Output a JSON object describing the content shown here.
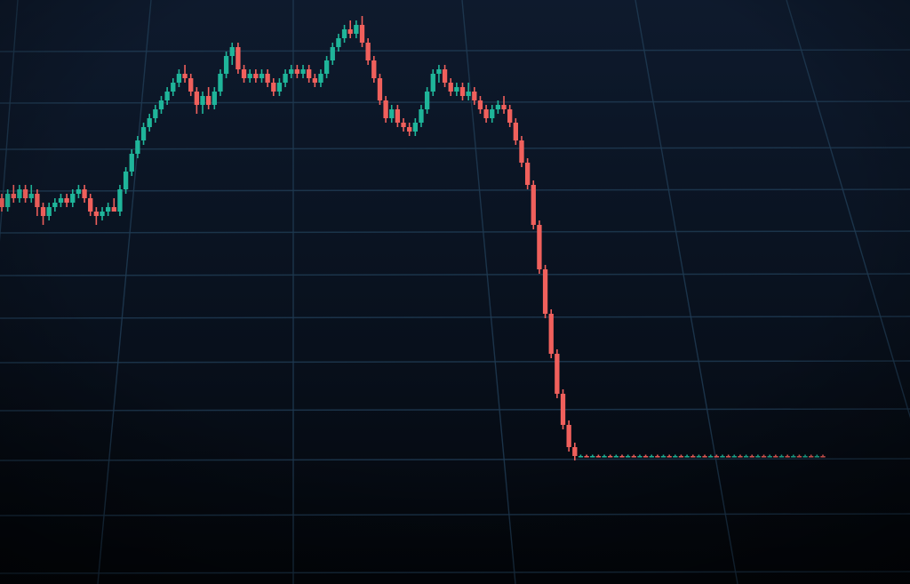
{
  "chart_data": {
    "type": "candlestick",
    "title": "",
    "xlabel": "",
    "ylabel": "",
    "grid": true,
    "legend": "none",
    "ylim": [
      0,
      100
    ],
    "colors": {
      "background": "#05080f",
      "grid": "#1f3a52",
      "up": "#1fb59a",
      "down": "#f0605c"
    },
    "series": [
      {
        "candles": [
          {
            "o": 59,
            "h": 60,
            "l": 56,
            "c": 57
          },
          {
            "o": 57,
            "h": 61,
            "l": 56,
            "c": 60
          },
          {
            "o": 60,
            "h": 62,
            "l": 58,
            "c": 59
          },
          {
            "o": 59,
            "h": 62,
            "l": 58,
            "c": 61
          },
          {
            "o": 61,
            "h": 62,
            "l": 58,
            "c": 59
          },
          {
            "o": 59,
            "h": 62,
            "l": 58,
            "c": 60
          },
          {
            "o": 60,
            "h": 61,
            "l": 55,
            "c": 57
          },
          {
            "o": 57,
            "h": 58,
            "l": 53,
            "c": 55
          },
          {
            "o": 55,
            "h": 58,
            "l": 54,
            "c": 57
          },
          {
            "o": 57,
            "h": 59,
            "l": 56,
            "c": 58
          },
          {
            "o": 58,
            "h": 60,
            "l": 57,
            "c": 59
          },
          {
            "o": 59,
            "h": 60,
            "l": 57,
            "c": 58
          },
          {
            "o": 58,
            "h": 61,
            "l": 57,
            "c": 60
          },
          {
            "o": 60,
            "h": 62,
            "l": 59,
            "c": 61
          },
          {
            "o": 61,
            "h": 62,
            "l": 58,
            "c": 59
          },
          {
            "o": 59,
            "h": 60,
            "l": 55,
            "c": 56
          },
          {
            "o": 56,
            "h": 57,
            "l": 53,
            "c": 55
          },
          {
            "o": 55,
            "h": 57,
            "l": 54,
            "c": 56
          },
          {
            "o": 56,
            "h": 58,
            "l": 55,
            "c": 57
          },
          {
            "o": 57,
            "h": 59,
            "l": 56,
            "c": 56
          },
          {
            "o": 56,
            "h": 62,
            "l": 55,
            "c": 61
          },
          {
            "o": 61,
            "h": 66,
            "l": 60,
            "c": 65
          },
          {
            "o": 65,
            "h": 70,
            "l": 64,
            "c": 69
          },
          {
            "o": 69,
            "h": 73,
            "l": 68,
            "c": 72
          },
          {
            "o": 72,
            "h": 76,
            "l": 71,
            "c": 75
          },
          {
            "o": 75,
            "h": 78,
            "l": 74,
            "c": 77
          },
          {
            "o": 77,
            "h": 80,
            "l": 76,
            "c": 79
          },
          {
            "o": 79,
            "h": 82,
            "l": 78,
            "c": 81
          },
          {
            "o": 81,
            "h": 84,
            "l": 80,
            "c": 83
          },
          {
            "o": 83,
            "h": 86,
            "l": 82,
            "c": 85
          },
          {
            "o": 85,
            "h": 88,
            "l": 84,
            "c": 87
          },
          {
            "o": 87,
            "h": 89,
            "l": 85,
            "c": 86
          },
          {
            "o": 86,
            "h": 87,
            "l": 82,
            "c": 83
          },
          {
            "o": 83,
            "h": 84,
            "l": 78,
            "c": 80
          },
          {
            "o": 80,
            "h": 83,
            "l": 78,
            "c": 82
          },
          {
            "o": 82,
            "h": 84,
            "l": 79,
            "c": 80
          },
          {
            "o": 80,
            "h": 84,
            "l": 79,
            "c": 83
          },
          {
            "o": 83,
            "h": 88,
            "l": 82,
            "c": 87
          },
          {
            "o": 87,
            "h": 92,
            "l": 86,
            "c": 91
          },
          {
            "o": 91,
            "h": 94,
            "l": 89,
            "c": 93
          },
          {
            "o": 93,
            "h": 94,
            "l": 87,
            "c": 88
          },
          {
            "o": 88,
            "h": 89,
            "l": 85,
            "c": 86
          },
          {
            "o": 86,
            "h": 88,
            "l": 85,
            "c": 87
          },
          {
            "o": 87,
            "h": 88,
            "l": 85,
            "c": 86
          },
          {
            "o": 86,
            "h": 88,
            "l": 85,
            "c": 87
          },
          {
            "o": 87,
            "h": 88,
            "l": 84,
            "c": 85
          },
          {
            "o": 85,
            "h": 86,
            "l": 82,
            "c": 83
          },
          {
            "o": 83,
            "h": 86,
            "l": 82,
            "c": 85
          },
          {
            "o": 85,
            "h": 88,
            "l": 84,
            "c": 87
          },
          {
            "o": 87,
            "h": 89,
            "l": 86,
            "c": 88
          },
          {
            "o": 88,
            "h": 89,
            "l": 86,
            "c": 87
          },
          {
            "o": 87,
            "h": 89,
            "l": 86,
            "c": 88
          },
          {
            "o": 88,
            "h": 89,
            "l": 85,
            "c": 86
          },
          {
            "o": 86,
            "h": 87,
            "l": 84,
            "c": 85
          },
          {
            "o": 85,
            "h": 88,
            "l": 84,
            "c": 87
          },
          {
            "o": 87,
            "h": 91,
            "l": 86,
            "c": 90
          },
          {
            "o": 90,
            "h": 94,
            "l": 89,
            "c": 93
          },
          {
            "o": 93,
            "h": 96,
            "l": 92,
            "c": 95
          },
          {
            "o": 95,
            "h": 98,
            "l": 94,
            "c": 97
          },
          {
            "o": 97,
            "h": 99,
            "l": 95,
            "c": 96
          },
          {
            "o": 96,
            "h": 99,
            "l": 95,
            "c": 98
          },
          {
            "o": 98,
            "h": 100,
            "l": 93,
            "c": 94
          },
          {
            "o": 94,
            "h": 95,
            "l": 89,
            "c": 90
          },
          {
            "o": 90,
            "h": 91,
            "l": 85,
            "c": 86
          },
          {
            "o": 86,
            "h": 87,
            "l": 80,
            "c": 81
          },
          {
            "o": 81,
            "h": 82,
            "l": 76,
            "c": 77
          },
          {
            "o": 77,
            "h": 80,
            "l": 76,
            "c": 79
          },
          {
            "o": 79,
            "h": 80,
            "l": 75,
            "c": 76
          },
          {
            "o": 76,
            "h": 77,
            "l": 74,
            "c": 75
          },
          {
            "o": 75,
            "h": 76,
            "l": 73,
            "c": 74
          },
          {
            "o": 74,
            "h": 77,
            "l": 73,
            "c": 76
          },
          {
            "o": 76,
            "h": 80,
            "l": 75,
            "c": 79
          },
          {
            "o": 79,
            "h": 84,
            "l": 78,
            "c": 83
          },
          {
            "o": 83,
            "h": 88,
            "l": 82,
            "c": 87
          },
          {
            "o": 87,
            "h": 89,
            "l": 85,
            "c": 88
          },
          {
            "o": 88,
            "h": 89,
            "l": 84,
            "c": 85
          },
          {
            "o": 85,
            "h": 86,
            "l": 82,
            "c": 83
          },
          {
            "o": 83,
            "h": 85,
            "l": 82,
            "c": 84
          },
          {
            "o": 84,
            "h": 85,
            "l": 81,
            "c": 82
          },
          {
            "o": 82,
            "h": 85,
            "l": 81,
            "c": 83
          },
          {
            "o": 83,
            "h": 84,
            "l": 80,
            "c": 81
          },
          {
            "o": 81,
            "h": 82,
            "l": 78,
            "c": 79
          },
          {
            "o": 79,
            "h": 80,
            "l": 76,
            "c": 77
          },
          {
            "o": 77,
            "h": 80,
            "l": 76,
            "c": 79
          },
          {
            "o": 79,
            "h": 81,
            "l": 78,
            "c": 80
          },
          {
            "o": 80,
            "h": 82,
            "l": 78,
            "c": 79
          },
          {
            "o": 79,
            "h": 80,
            "l": 75,
            "c": 76
          },
          {
            "o": 76,
            "h": 77,
            "l": 71,
            "c": 72
          },
          {
            "o": 72,
            "h": 73,
            "l": 66,
            "c": 67
          },
          {
            "o": 67,
            "h": 68,
            "l": 61,
            "c": 62
          },
          {
            "o": 62,
            "h": 63,
            "l": 52,
            "c": 53
          },
          {
            "o": 53,
            "h": 54,
            "l": 42,
            "c": 43
          },
          {
            "o": 43,
            "h": 44,
            "l": 32,
            "c": 33
          },
          {
            "o": 33,
            "h": 34,
            "l": 23,
            "c": 24
          },
          {
            "o": 24,
            "h": 25,
            "l": 14,
            "c": 15
          },
          {
            "o": 15,
            "h": 16,
            "l": 7,
            "c": 8
          },
          {
            "o": 8,
            "h": 9,
            "l": 2,
            "c": 3
          },
          {
            "o": 3,
            "h": 4,
            "l": 0,
            "c": 1
          },
          {
            "o": 1,
            "h": 1.3,
            "l": 0.7,
            "c": 1
          },
          {
            "o": 1,
            "h": 1.3,
            "l": 0.7,
            "c": 1
          },
          {
            "o": 1,
            "h": 1.3,
            "l": 0.7,
            "c": 1
          },
          {
            "o": 1,
            "h": 1.3,
            "l": 0.7,
            "c": 1
          },
          {
            "o": 1,
            "h": 1.3,
            "l": 0.7,
            "c": 1
          },
          {
            "o": 1,
            "h": 1.3,
            "l": 0.7,
            "c": 1
          },
          {
            "o": 1,
            "h": 1.3,
            "l": 0.7,
            "c": 1
          },
          {
            "o": 1,
            "h": 1.3,
            "l": 0.7,
            "c": 1
          },
          {
            "o": 1,
            "h": 1.3,
            "l": 0.7,
            "c": 1
          },
          {
            "o": 1,
            "h": 1.3,
            "l": 0.7,
            "c": 1
          },
          {
            "o": 1,
            "h": 1.3,
            "l": 0.7,
            "c": 1
          },
          {
            "o": 1,
            "h": 1.3,
            "l": 0.7,
            "c": 1
          },
          {
            "o": 1,
            "h": 1.3,
            "l": 0.7,
            "c": 1
          },
          {
            "o": 1,
            "h": 1.3,
            "l": 0.7,
            "c": 1
          },
          {
            "o": 1,
            "h": 1.3,
            "l": 0.7,
            "c": 1
          },
          {
            "o": 1,
            "h": 1.3,
            "l": 0.7,
            "c": 1
          },
          {
            "o": 1,
            "h": 1.3,
            "l": 0.7,
            "c": 1
          },
          {
            "o": 1,
            "h": 1.3,
            "l": 0.7,
            "c": 1
          },
          {
            "o": 1,
            "h": 1.3,
            "l": 0.7,
            "c": 1
          },
          {
            "o": 1,
            "h": 1.3,
            "l": 0.7,
            "c": 1
          },
          {
            "o": 1,
            "h": 1.3,
            "l": 0.7,
            "c": 1
          },
          {
            "o": 1,
            "h": 1.3,
            "l": 0.7,
            "c": 1
          },
          {
            "o": 1,
            "h": 1.3,
            "l": 0.7,
            "c": 1
          },
          {
            "o": 1,
            "h": 1.3,
            "l": 0.7,
            "c": 1
          },
          {
            "o": 1,
            "h": 1.3,
            "l": 0.7,
            "c": 1
          },
          {
            "o": 1,
            "h": 1.3,
            "l": 0.7,
            "c": 1
          },
          {
            "o": 1,
            "h": 1.3,
            "l": 0.7,
            "c": 1
          },
          {
            "o": 1,
            "h": 1.3,
            "l": 0.7,
            "c": 1
          },
          {
            "o": 1,
            "h": 1.3,
            "l": 0.7,
            "c": 1
          },
          {
            "o": 1,
            "h": 1.3,
            "l": 0.7,
            "c": 1
          },
          {
            "o": 1,
            "h": 1.3,
            "l": 0.7,
            "c": 1
          },
          {
            "o": 1,
            "h": 1.3,
            "l": 0.7,
            "c": 1
          },
          {
            "o": 1,
            "h": 1.3,
            "l": 0.7,
            "c": 1
          },
          {
            "o": 1,
            "h": 1.3,
            "l": 0.7,
            "c": 1
          },
          {
            "o": 1,
            "h": 1.3,
            "l": 0.7,
            "c": 1
          },
          {
            "o": 1,
            "h": 1.3,
            "l": 0.7,
            "c": 1
          },
          {
            "o": 1,
            "h": 1.3,
            "l": 0.7,
            "c": 1
          },
          {
            "o": 1,
            "h": 1.3,
            "l": 0.7,
            "c": 1
          },
          {
            "o": 1,
            "h": 1.3,
            "l": 0.7,
            "c": 1
          },
          {
            "o": 1,
            "h": 1.3,
            "l": 0.7,
            "c": 1
          },
          {
            "o": 1,
            "h": 1.3,
            "l": 0.7,
            "c": 1
          },
          {
            "o": 1,
            "h": 1.3,
            "l": 0.7,
            "c": 1
          }
        ]
      }
    ]
  }
}
